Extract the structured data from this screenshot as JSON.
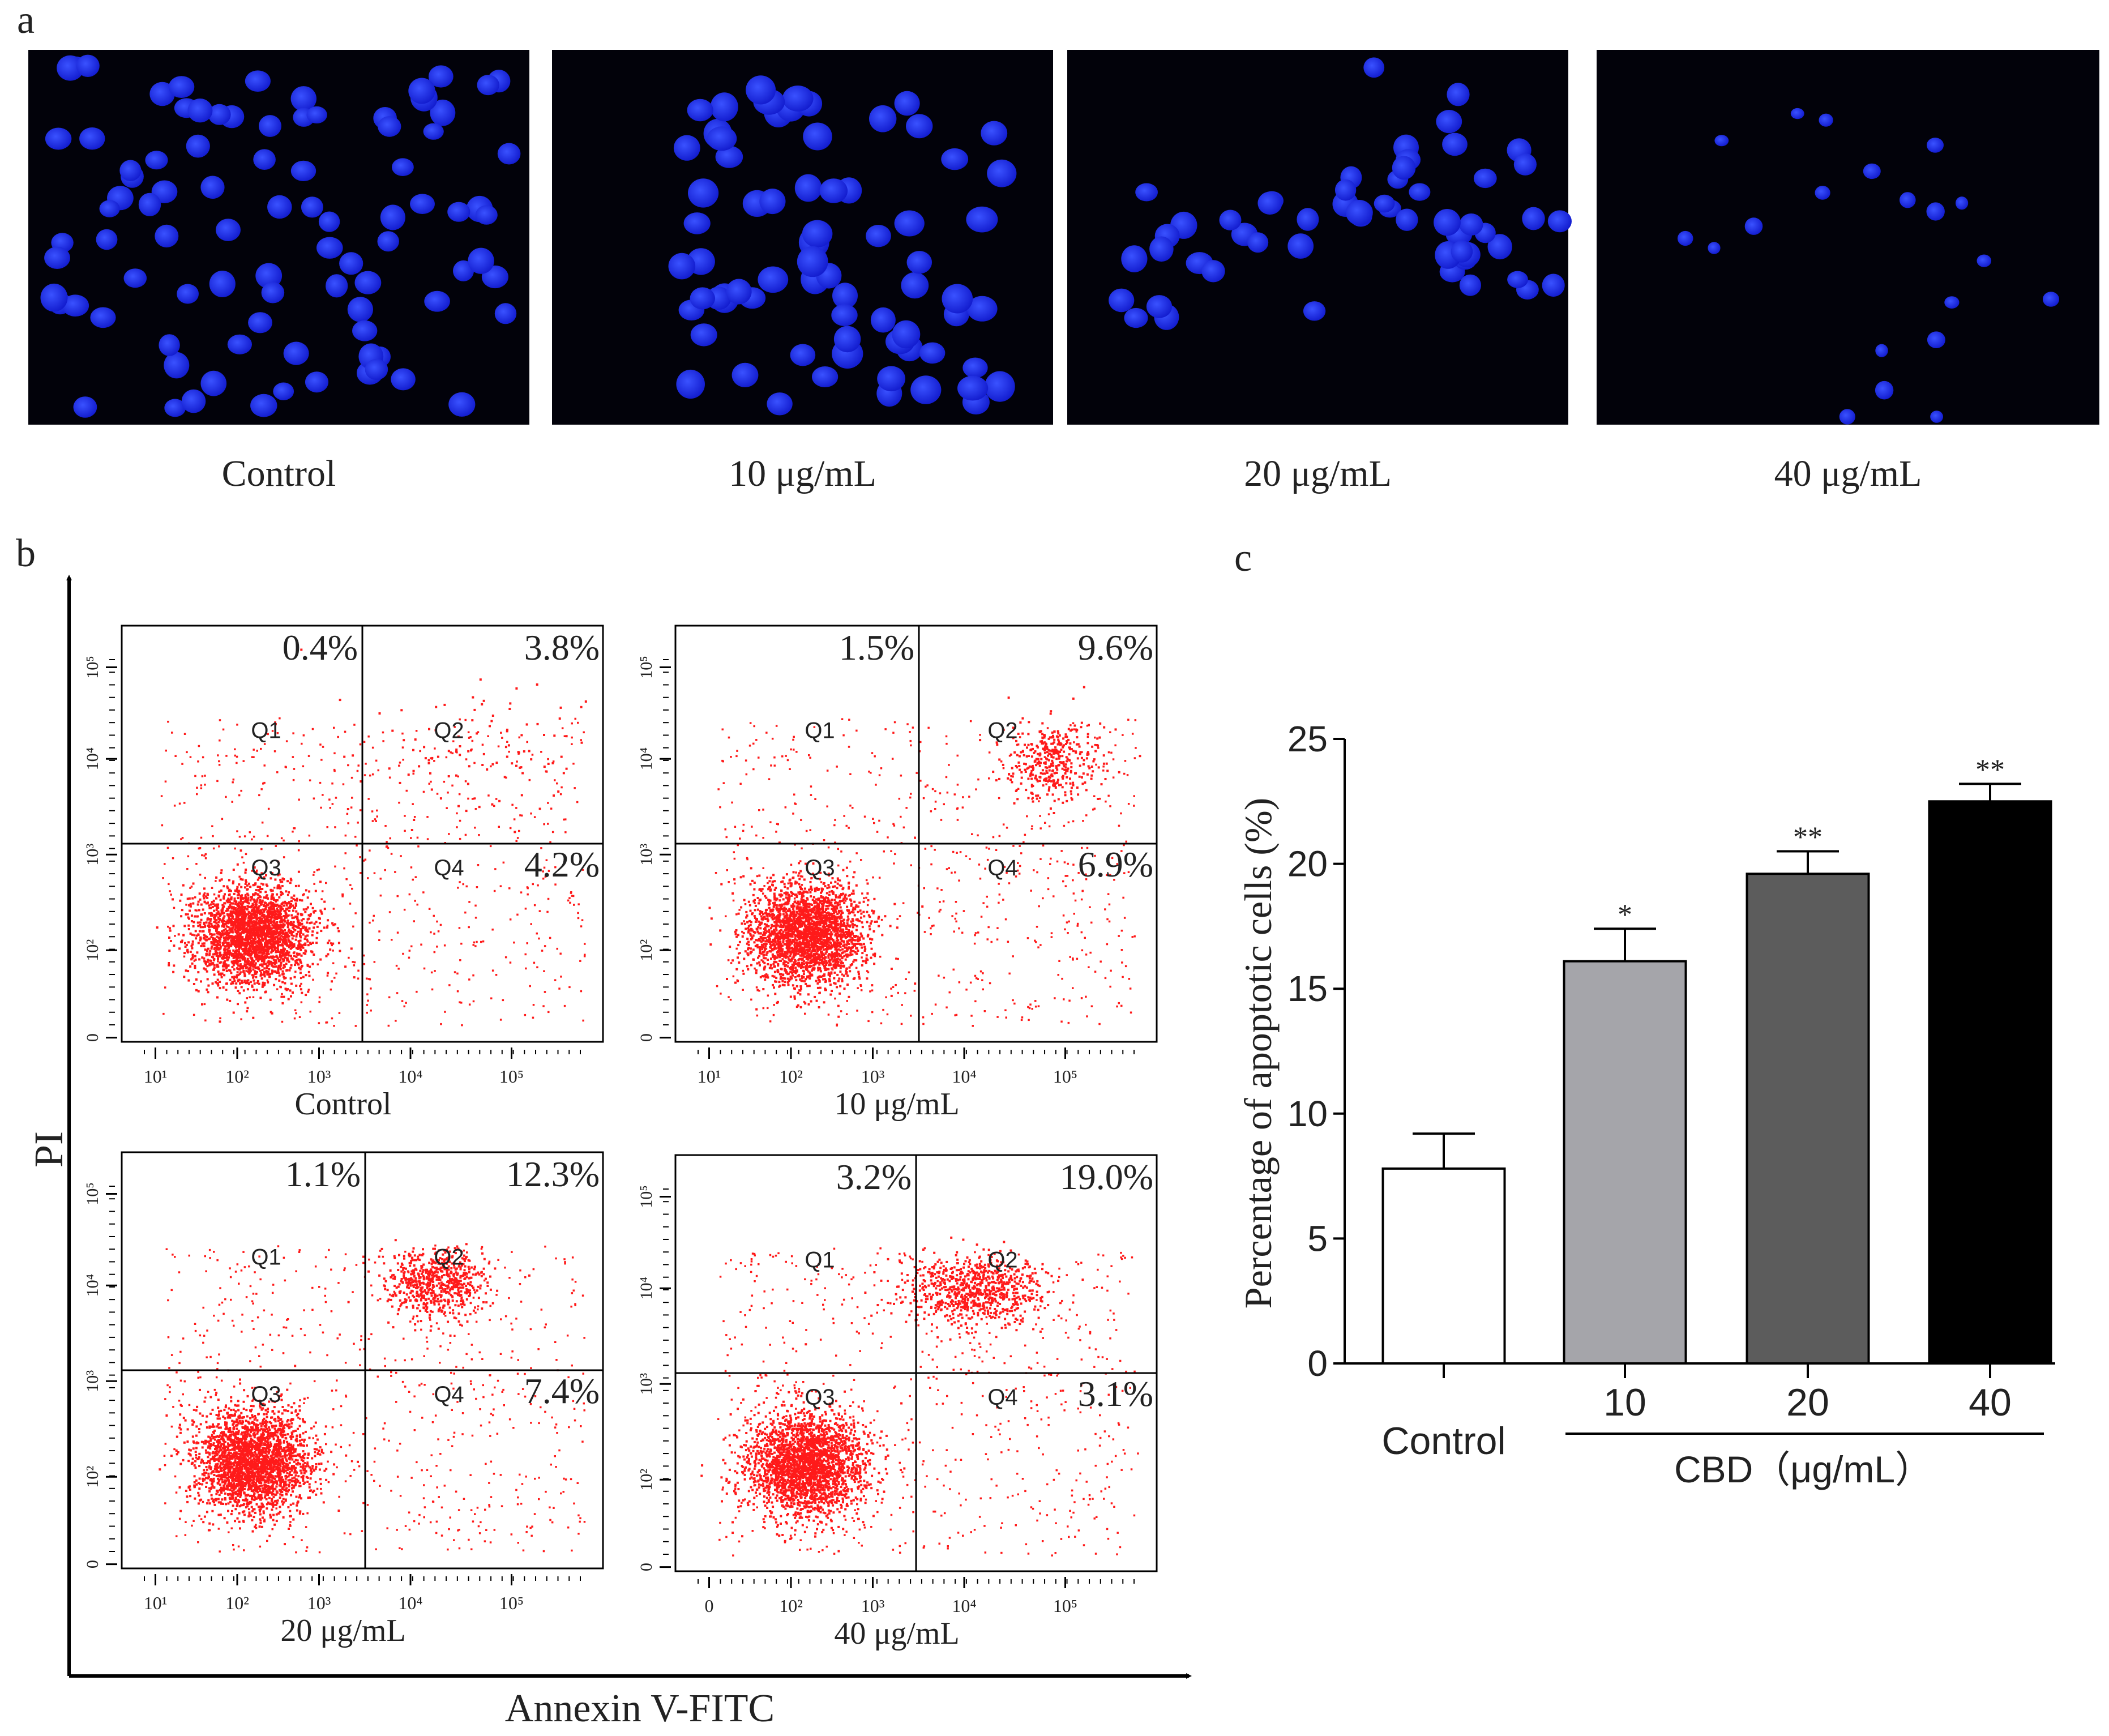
{
  "panel_a": {
    "label": "a",
    "images": [
      {
        "caption": "Control",
        "cell_count": 90,
        "seed": 11
      },
      {
        "caption": "10 μg/mL",
        "cell_count": 70,
        "seed": 23
      },
      {
        "caption": "20 μg/mL",
        "cell_count": 55,
        "seed": 37
      },
      {
        "caption": "40 μg/mL",
        "cell_count": 20,
        "seed": 51
      }
    ]
  },
  "panel_b": {
    "label": "b",
    "y_axis_label": "PI",
    "x_axis_label": "Annexin V-FITC",
    "quadrant_labels": [
      "Q1",
      "Q2",
      "Q3",
      "Q4"
    ],
    "x_ticks": [
      "10¹",
      "10²",
      "10³",
      "10⁴",
      "10⁵"
    ],
    "x_ticks_alt": [
      "0",
      "10²",
      "10³",
      "10⁴",
      "10⁵"
    ],
    "y_ticks": [
      "0",
      "10²",
      "10³",
      "10⁴",
      "10⁵"
    ],
    "plots": [
      {
        "name": "Control",
        "q1": "0.4%",
        "q2": "3.8%",
        "q4": "4.2%"
      },
      {
        "name": "10 μg/mL",
        "q1": "1.5%",
        "q2": "9.6%",
        "q4": "6.9%"
      },
      {
        "name": "20 μg/mL",
        "q1": "1.1%",
        "q2": "12.3%",
        "q4": "7.4%"
      },
      {
        "name": "40 μg/mL",
        "q1": "3.2%",
        "q2": "19.0%",
        "q4": "3.1%"
      }
    ]
  },
  "chart_data": {
    "label": "c",
    "type": "bar",
    "ylabel": "Percentage of apoptotic cells (%)",
    "ylim": [
      0,
      25
    ],
    "y_ticks": [
      0,
      5,
      10,
      15,
      20,
      25
    ],
    "categories": [
      "Control",
      "10",
      "20",
      "40"
    ],
    "values": [
      7.8,
      16.1,
      19.6,
      22.5
    ],
    "errors": [
      1.4,
      1.3,
      0.9,
      0.7
    ],
    "significance": [
      "",
      "*",
      "**",
      "**"
    ],
    "bar_colors": [
      "#ffffff",
      "#a5a5aa",
      "#5c5c5c",
      "#000000"
    ],
    "group_label": "CBD（μg/mL）"
  },
  "colors": {
    "nucleus": "#1d2bff",
    "background": "#02020a",
    "dots": "#ff1a1a"
  }
}
